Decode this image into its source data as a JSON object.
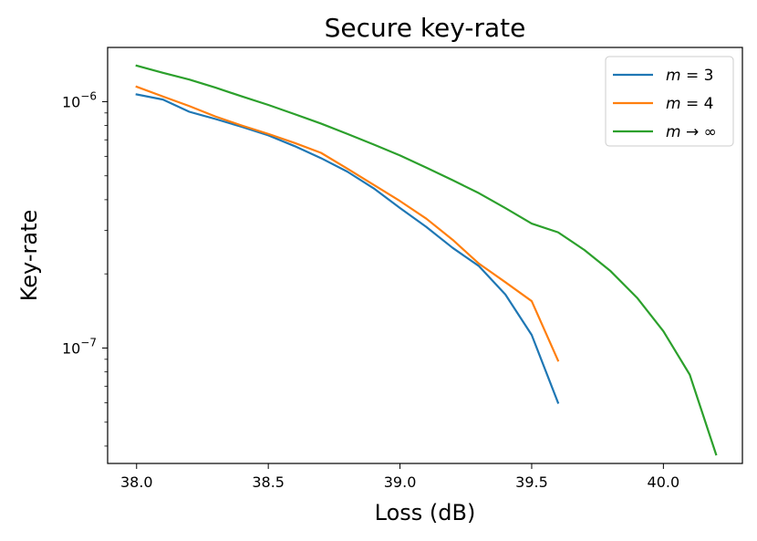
{
  "chart_data": {
    "type": "line",
    "title": "Secure key-rate",
    "xlabel": "Loss (dB)",
    "ylabel": "Key-rate",
    "xlim": [
      37.89,
      40.3
    ],
    "ylim": [
      3.4e-08,
      1.66e-06
    ],
    "yscale": "log",
    "grid": false,
    "legend_position": "top-right",
    "x_ticks": [
      {
        "value": 38.0,
        "label": "38.0"
      },
      {
        "value": 38.5,
        "label": "38.5"
      },
      {
        "value": 39.0,
        "label": "39.0"
      },
      {
        "value": 39.5,
        "label": "39.5"
      },
      {
        "value": 40.0,
        "label": "40.0"
      }
    ],
    "y_ticks": [
      {
        "value": 1e-06,
        "base": "10",
        "exp": "−6"
      },
      {
        "value": 1e-07,
        "base": "10",
        "exp": "−7"
      }
    ],
    "series": [
      {
        "name_var": "m",
        "name_rest": " = 3",
        "color": "#1f77b4",
        "x": [
          38.0,
          38.1,
          38.2,
          38.3,
          38.4,
          38.5,
          38.6,
          38.7,
          38.8,
          38.9,
          39.0,
          39.1,
          39.2,
          39.3,
          39.4,
          39.5,
          39.6
        ],
        "y": [
          1.07e-06,
          1.02e-06,
          9.1e-07,
          8.5e-07,
          7.9e-07,
          7.3e-07,
          6.6e-07,
          5.9e-07,
          5.2e-07,
          4.45e-07,
          3.7e-07,
          3.1e-07,
          2.55e-07,
          2.15e-07,
          1.65e-07,
          1.13e-07,
          6e-08
        ]
      },
      {
        "name_var": "m",
        "name_rest": " = 4",
        "color": "#ff7f0e",
        "x": [
          38.0,
          38.1,
          38.2,
          38.3,
          38.4,
          38.5,
          38.6,
          38.7,
          38.8,
          38.9,
          39.0,
          39.1,
          39.2,
          39.3,
          39.4,
          39.5,
          39.6
        ],
        "y": [
          1.15e-06,
          1.05e-06,
          9.6e-07,
          8.7e-07,
          8e-07,
          7.4e-07,
          6.8e-07,
          6.2e-07,
          5.35e-07,
          4.6e-07,
          3.95e-07,
          3.35e-07,
          2.75e-07,
          2.2e-07,
          1.85e-07,
          1.55e-07,
          8.9e-08
        ]
      },
      {
        "name_var": "m",
        "name_rest": " → ∞",
        "color": "#2ca02c",
        "x": [
          38.0,
          38.1,
          38.2,
          38.3,
          38.4,
          38.5,
          38.6,
          38.7,
          38.8,
          38.9,
          39.0,
          39.1,
          39.2,
          39.3,
          39.4,
          39.5,
          39.6,
          39.7,
          39.8,
          39.9,
          40.0,
          40.1,
          40.2
        ],
        "y": [
          1.4e-06,
          1.31e-06,
          1.23e-06,
          1.14e-06,
          1.05e-06,
          9.7e-07,
          8.9e-07,
          8.15e-07,
          7.4e-07,
          6.7e-07,
          6.05e-07,
          5.4e-07,
          4.8e-07,
          4.25e-07,
          3.7e-07,
          3.2e-07,
          2.95e-07,
          2.5e-07,
          2.05e-07,
          1.6e-07,
          1.17e-07,
          7.8e-08,
          3.7e-08
        ]
      }
    ]
  }
}
